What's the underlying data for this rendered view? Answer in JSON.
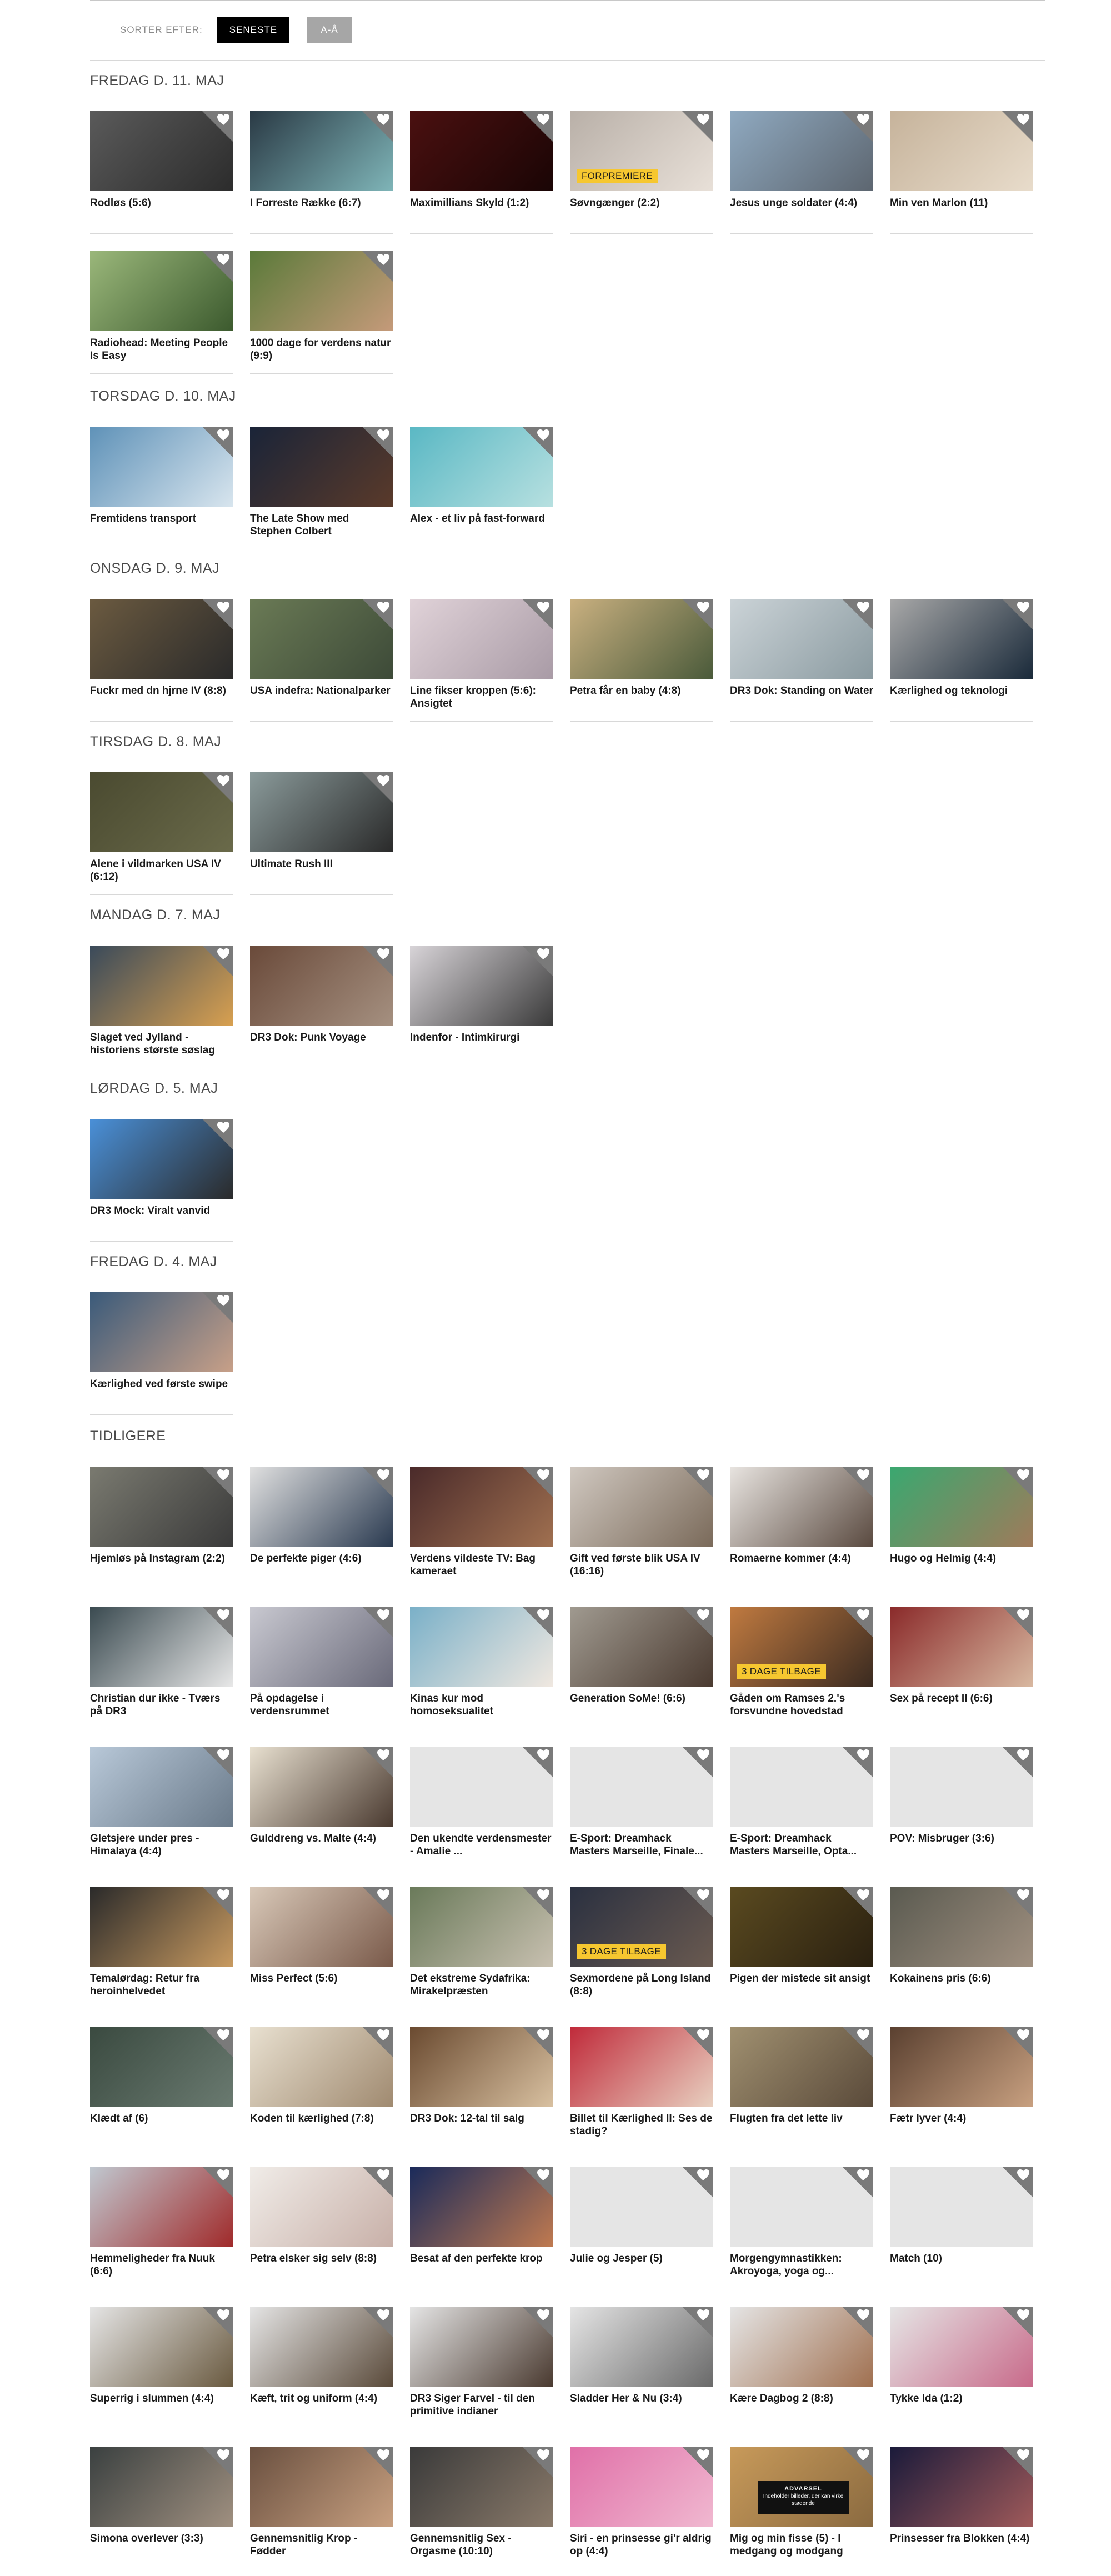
{
  "sort": {
    "label": "SORTER EFTER:",
    "options": [
      {
        "label": "SENESTE",
        "active": true
      },
      {
        "label": "A-Å",
        "active": false
      }
    ]
  },
  "sections": [
    {
      "heading": "FREDAG D. 11. MAJ",
      "items": [
        {
          "title": "Rodløs (5:6)",
          "colors": [
            "#5a5a5a",
            "#2c2c2c"
          ]
        },
        {
          "title": "I Forreste Række (6:7)",
          "colors": [
            "#2a3a45",
            "#7fb5b8"
          ]
        },
        {
          "title": "Maximillians Skyld (1:2)",
          "colors": [
            "#4a1010",
            "#1a0505"
          ]
        },
        {
          "title": "Søvngænger (2:2)",
          "colors": [
            "#b9b0a8",
            "#e8e0d8"
          ],
          "badge": "FORPREMIERE"
        },
        {
          "title": "Jesus unge soldater (4:4)",
          "colors": [
            "#8fa9c0",
            "#5d6670"
          ]
        },
        {
          "title": "Min ven Marlon (11)",
          "colors": [
            "#c6b39b",
            "#e8dccb"
          ]
        },
        {
          "title": "Radiohead: Meeting People Is Easy",
          "colors": [
            "#9ab77a",
            "#3c5a2e"
          ]
        },
        {
          "title": "1000 dage for verdens natur (9:9)",
          "colors": [
            "#5b7a3a",
            "#c59a7a"
          ]
        }
      ]
    },
    {
      "heading": "TORSDAG D. 10. MAJ",
      "items": [
        {
          "title": "Fremtidens transport",
          "colors": [
            "#5f92b8",
            "#d8e5ee"
          ]
        },
        {
          "title": "The Late Show med Stephen Colbert",
          "colors": [
            "#1a2438",
            "#5a3a2a"
          ]
        },
        {
          "title": "Alex - et liv på fast-forward",
          "colors": [
            "#5ab8c4",
            "#b7e0e0"
          ]
        }
      ]
    },
    {
      "heading": "ONSDAG D. 9. MAJ",
      "items": [
        {
          "title": "Fuckr med dn hjrne IV (8:8)",
          "colors": [
            "#6b5a40",
            "#2a2a2a"
          ]
        },
        {
          "title": "USA indefra: Nationalparker",
          "colors": [
            "#6a7a55",
            "#3d4a38"
          ]
        },
        {
          "title": "Line fikser kroppen (5:6): Ansigtet",
          "colors": [
            "#e0d2d8",
            "#a99ba6"
          ]
        },
        {
          "title": "Petra får en baby (4:8)",
          "colors": [
            "#c9b080",
            "#4a5a3a"
          ]
        },
        {
          "title": "DR3 Dok: Standing on Water",
          "colors": [
            "#cbd3d7",
            "#8a9aa0"
          ]
        },
        {
          "title": "Kærlighed og teknologi",
          "colors": [
            "#a8a8a8",
            "#1a2a3a"
          ]
        }
      ]
    },
    {
      "heading": "TIRSDAG D. 8. MAJ",
      "items": [
        {
          "title": "Alene i vildmarken USA IV (6:12)",
          "colors": [
            "#4a4a30",
            "#6a6a4a"
          ]
        },
        {
          "title": "Ultimate Rush III",
          "colors": [
            "#8a9a9a",
            "#2a2a2a"
          ]
        }
      ]
    },
    {
      "heading": "MANDAG D. 7. MAJ",
      "items": [
        {
          "title": "Slaget ved Jylland - historiens største søslag",
          "colors": [
            "#3a4a5a",
            "#d8a050"
          ]
        },
        {
          "title": "DR3 Dok: Punk Voyage",
          "colors": [
            "#6a4a3a",
            "#a59080"
          ]
        },
        {
          "title": "Indenfor - Intimkirurgi",
          "colors": [
            "#d8d4d8",
            "#3a3a3a"
          ]
        }
      ]
    },
    {
      "heading": "LØRDAG D. 5. MAJ",
      "items": [
        {
          "title": "DR3 Mock: Viralt vanvid",
          "colors": [
            "#4a90d8",
            "#2a2a2a"
          ]
        }
      ]
    },
    {
      "heading": "FREDAG D. 4. MAJ",
      "items": [
        {
          "title": "Kærlighed ved første swipe",
          "colors": [
            "#3a5a7a",
            "#c8a088"
          ]
        }
      ]
    },
    {
      "heading": "TIDLIGERE",
      "items": [
        {
          "title": "Hjemløs på Instagram (2:2)",
          "colors": [
            "#7a7a70",
            "#3a3a3a"
          ]
        },
        {
          "title": "De perfekte piger (4:6)",
          "colors": [
            "#e0e0e0",
            "#2a3a50"
          ]
        },
        {
          "title": "Verdens vildeste TV: Bag kameraet",
          "colors": [
            "#4a2a2a",
            "#a07050"
          ]
        },
        {
          "title": "Gift ved første blik USA IV (16:16)",
          "colors": [
            "#d0c8c0",
            "#7a6a5a"
          ]
        },
        {
          "title": "Romaerne kommer (4:4)",
          "colors": [
            "#e8e4e0",
            "#5a4a40"
          ]
        },
        {
          "title": "Hugo og Helmig (4:4)",
          "colors": [
            "#3aa870",
            "#a07a5a"
          ]
        },
        {
          "title": "Christian dur ikke - Tværs på DR3",
          "colors": [
            "#3a4a50",
            "#e8e8e8"
          ]
        },
        {
          "title": "På opdagelse i verdensrummet",
          "colors": [
            "#c8c8d0",
            "#6a6a7a"
          ]
        },
        {
          "title": "Kinas kur mod homoseksualitet",
          "colors": [
            "#7ab0c8",
            "#f0e8e0"
          ]
        },
        {
          "title": "Generation SoMe! (6:6)",
          "colors": [
            "#a09a90",
            "#4a3a30"
          ]
        },
        {
          "title": "Gåden om Ramses 2.'s forsvundne hovedstad",
          "colors": [
            "#c07a40",
            "#3a2a20"
          ],
          "badge": "3 DAGE TILBAGE"
        },
        {
          "title": "Sex på recept II (6:6)",
          "colors": [
            "#8a2a2a",
            "#d8b8a0"
          ]
        },
        {
          "title": "Gletsjere under pres - Himalaya (4:4)",
          "colors": [
            "#b8c8d8",
            "#6a7a8a"
          ]
        },
        {
          "title": "Gulddreng vs. Malte (4:4)",
          "colors": [
            "#e8e0d0",
            "#4a3a30"
          ]
        },
        {
          "title": "Den ukendte verdensmester - Amalie ...",
          "colors": [
            "#e5e5e5",
            "#e5e5e5"
          ]
        },
        {
          "title": "E-Sport: Dreamhack Masters Marseille, Finale...",
          "colors": [
            "#e5e5e5",
            "#e5e5e5"
          ]
        },
        {
          "title": "E-Sport: Dreamhack Masters Marseille, Opta...",
          "colors": [
            "#e5e5e5",
            "#e5e5e5"
          ]
        },
        {
          "title": "POV: Misbruger (3:6)",
          "colors": [
            "#e5e5e5",
            "#e5e5e5"
          ]
        },
        {
          "title": "Temalørdag: Retur fra heroinhelvedet",
          "colors": [
            "#2a2a2a",
            "#c89a60"
          ]
        },
        {
          "title": "Miss Perfect (5:6)",
          "colors": [
            "#d8c8b8",
            "#7a5a4a"
          ]
        },
        {
          "title": "Det ekstreme Sydafrika: Mirakelpræsten",
          "colors": [
            "#6a7a5a",
            "#c8c0b0"
          ]
        },
        {
          "title": "Sexmordene på Long Island (8:8)",
          "colors": [
            "#2a3040",
            "#6a5a50"
          ],
          "badge": "3 DAGE TILBAGE"
        },
        {
          "title": "Pigen der mistede sit ansigt",
          "colors": [
            "#5a4a20",
            "#2a2010"
          ]
        },
        {
          "title": "Kokainens pris (6:6)",
          "colors": [
            "#5a5a50",
            "#a09080"
          ]
        },
        {
          "title": "Klædt af (6)",
          "colors": [
            "#3a4a40",
            "#6a7a70"
          ]
        },
        {
          "title": "Koden til kærlighed (7:8)",
          "colors": [
            "#e8e0d0",
            "#a08a70"
          ]
        },
        {
          "title": "DR3 Dok: 12-tal til salg",
          "colors": [
            "#6a4a30",
            "#d8c0a0"
          ]
        },
        {
          "title": "Billet til Kærlighed II: Ses de stadig?",
          "colors": [
            "#c02a3a",
            "#e8d0c0"
          ]
        },
        {
          "title": "Flugten fra det lette liv",
          "colors": [
            "#a09070",
            "#5a4a3a"
          ]
        },
        {
          "title": "Fætr lyver (4:4)",
          "colors": [
            "#5a4030",
            "#c8a080"
          ]
        },
        {
          "title": "Hemmeligheder fra Nuuk (6:6)",
          "colors": [
            "#c0c8d0",
            "#a02a2a"
          ]
        },
        {
          "title": "Petra elsker sig selv (8:8)",
          "colors": [
            "#f0ece8",
            "#c8b0a8"
          ]
        },
        {
          "title": "Besat af den perfekte krop",
          "colors": [
            "#1a2a5a",
            "#c07a50"
          ]
        },
        {
          "title": "Julie og Jesper (5)",
          "colors": [
            "#e5e5e5",
            "#e5e5e5"
          ]
        },
        {
          "title": "Morgengymnastikken: Akroyoga, yoga og...",
          "colors": [
            "#e5e5e5",
            "#e5e5e5"
          ]
        },
        {
          "title": "Match (10)",
          "colors": [
            "#e5e5e5",
            "#e5e5e5"
          ]
        },
        {
          "title": "Superrig i slummen (4:4)",
          "colors": [
            "#e5e5e5",
            "#6a5a40"
          ]
        },
        {
          "title": "Kæft, trit og uniform (4:4)",
          "colors": [
            "#e5e5e5",
            "#5a4a3a"
          ]
        },
        {
          "title": "DR3 Siger Farvel - til den primitive indianer",
          "colors": [
            "#e5e5e5",
            "#4a3a30"
          ]
        },
        {
          "title": "Sladder Her & Nu (3:4)",
          "colors": [
            "#e5e5e5",
            "#6a6a6a"
          ]
        },
        {
          "title": "Kære Dagbog 2 (8:8)",
          "colors": [
            "#e5e5e5",
            "#a07050"
          ]
        },
        {
          "title": "Tykke Ida (1:2)",
          "colors": [
            "#e5e5e5",
            "#c86a8a"
          ]
        },
        {
          "title": "Simona overlever (3:3)",
          "colors": [
            "#3a4040",
            "#a09080"
          ]
        },
        {
          "title": "Gennemsnitlig Krop - Fødder",
          "colors": [
            "#6a5040",
            "#c8a080"
          ]
        },
        {
          "title": "Gennemsnitlig Sex - Orgasme (10:10)",
          "colors": [
            "#3a3a3a",
            "#8a7a6a"
          ]
        },
        {
          "title": "Siri - en prinsesse gi'r aldrig op (4:4)",
          "colors": [
            "#e070a8",
            "#f0b8d0"
          ]
        },
        {
          "title": "Mig og min fisse (5) - I medgang og modgang",
          "colors": [
            "#c89a5a",
            "#8a6a40"
          ],
          "warning": {
            "title": "ADVARSEL",
            "text": "Indeholder billeder, der kan virke stødende"
          }
        },
        {
          "title": "Prinsesser fra Blokken (4:4)",
          "colors": [
            "#1a1a3a",
            "#a05a5a"
          ]
        }
      ]
    }
  ]
}
